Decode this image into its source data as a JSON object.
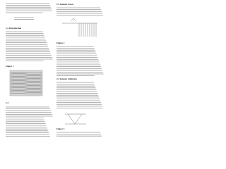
{
  "left": {
    "heading1": "2.2 Introduction",
    "caption1": "Figure 1",
    "heading2": "2.3"
  },
  "right": {
    "heading1": "2.3 Seismic waves",
    "caption1": "Figure 2",
    "heading2": "2.4 Seismic reflection",
    "caption2": "Figure 3"
  }
}
